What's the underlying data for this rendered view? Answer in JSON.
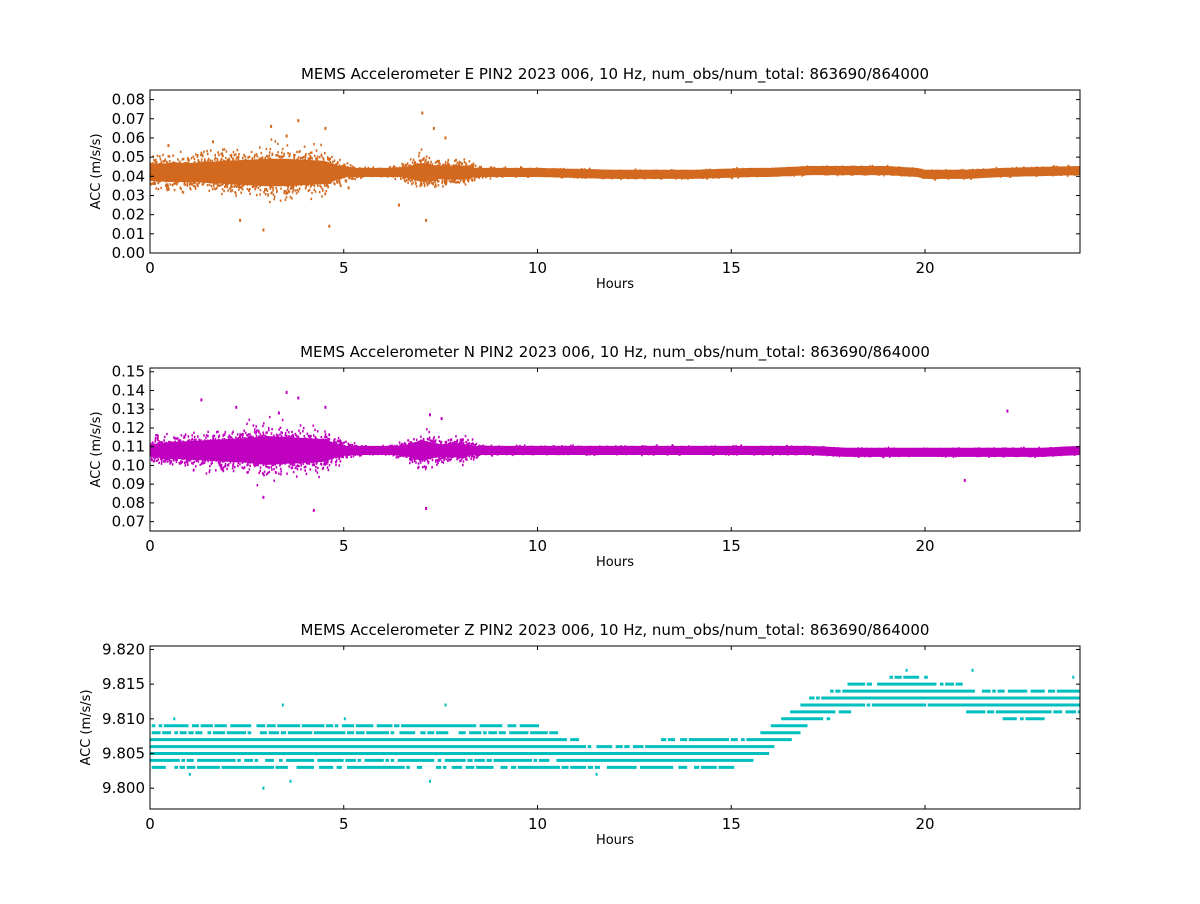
{
  "chart_data": [
    {
      "type": "scatter",
      "title": "MEMS Accelerometer E PIN2 2023 006, 10 Hz, num_obs/num_total: 863690/864000",
      "xlabel": "Hours",
      "ylabel": "ACC (m/s/s)",
      "xlim": [
        0,
        24
      ],
      "ylim": [
        0.0,
        0.085
      ],
      "xticks": [
        0,
        5,
        10,
        15,
        20
      ],
      "yticks": [
        0.0,
        0.01,
        0.02,
        0.03,
        0.04,
        0.05,
        0.06,
        0.07,
        0.08
      ],
      "ytick_decimals": 2,
      "color": "#d2691e",
      "grid": false,
      "series": [
        {
          "envelope_hours": [
            0,
            0.5,
            1,
            1.5,
            2,
            2.5,
            3,
            3.5,
            4,
            4.5,
            5,
            5.5,
            6,
            6.5,
            7,
            7.5,
            8,
            8.5,
            9,
            10,
            12,
            14,
            15.5,
            16,
            17,
            18,
            19,
            19.8,
            20,
            21,
            22,
            24
          ],
          "envelope_center": [
            0.042,
            0.042,
            0.042,
            0.042,
            0.042,
            0.042,
            0.042,
            0.042,
            0.042,
            0.042,
            0.042,
            0.042,
            0.042,
            0.042,
            0.042,
            0.042,
            0.042,
            0.042,
            0.042,
            0.042,
            0.041,
            0.041,
            0.042,
            0.042,
            0.043,
            0.043,
            0.043,
            0.042,
            0.041,
            0.041,
            0.042,
            0.043
          ],
          "envelope_halfwidth": [
            0.008,
            0.009,
            0.009,
            0.01,
            0.011,
            0.012,
            0.013,
            0.013,
            0.012,
            0.011,
            0.005,
            0.002,
            0.002,
            0.004,
            0.009,
            0.006,
            0.007,
            0.003,
            0.002,
            0.002,
            0.002,
            0.002,
            0.002,
            0.002,
            0.002,
            0.002,
            0.002,
            0.002,
            0.002,
            0.002,
            0.002,
            0.002
          ],
          "outliers": [
            [
              0.45,
              0.056
            ],
            [
              1.6,
              0.058
            ],
            [
              2.3,
              0.017
            ],
            [
              2.9,
              0.012
            ],
            [
              3.1,
              0.066
            ],
            [
              3.5,
              0.061
            ],
            [
              3.8,
              0.069
            ],
            [
              4.5,
              0.065
            ],
            [
              4.6,
              0.014
            ],
            [
              5.1,
              0.034
            ],
            [
              6.4,
              0.025
            ],
            [
              7.0,
              0.073
            ],
            [
              7.1,
              0.017
            ],
            [
              7.3,
              0.065
            ],
            [
              7.6,
              0.06
            ]
          ]
        }
      ]
    },
    {
      "type": "scatter",
      "title": "MEMS Accelerometer N PIN2 2023 006, 10 Hz, num_obs/num_total: 863690/864000",
      "xlabel": "Hours",
      "ylabel": "ACC (m/s/s)",
      "xlim": [
        0,
        24
      ],
      "ylim": [
        0.065,
        0.152
      ],
      "xticks": [
        0,
        5,
        10,
        15,
        20
      ],
      "yticks": [
        0.07,
        0.08,
        0.09,
        0.1,
        0.11,
        0.12,
        0.13,
        0.14,
        0.15
      ],
      "ytick_decimals": 2,
      "color": "#bf00bf",
      "grid": false,
      "series": [
        {
          "envelope_hours": [
            0,
            0.5,
            1,
            1.5,
            2,
            2.5,
            3,
            3.5,
            4,
            4.5,
            5,
            5.5,
            6,
            6.5,
            7,
            7.5,
            8,
            8.5,
            9,
            10,
            12,
            14,
            16,
            17,
            18,
            19,
            20,
            21,
            22,
            23,
            24
          ],
          "envelope_center": [
            0.108,
            0.108,
            0.108,
            0.108,
            0.108,
            0.108,
            0.108,
            0.108,
            0.108,
            0.108,
            0.108,
            0.108,
            0.108,
            0.108,
            0.108,
            0.108,
            0.108,
            0.108,
            0.108,
            0.108,
            0.108,
            0.108,
            0.108,
            0.108,
            0.107,
            0.107,
            0.107,
            0.107,
            0.107,
            0.107,
            0.108
          ],
          "envelope_halfwidth": [
            0.006,
            0.008,
            0.009,
            0.01,
            0.011,
            0.012,
            0.014,
            0.013,
            0.012,
            0.011,
            0.004,
            0.002,
            0.002,
            0.004,
            0.01,
            0.006,
            0.007,
            0.003,
            0.002,
            0.002,
            0.002,
            0.002,
            0.002,
            0.002,
            0.002,
            0.002,
            0.002,
            0.002,
            0.002,
            0.002,
            0.002
          ],
          "outliers": [
            [
              1.3,
              0.135
            ],
            [
              2.2,
              0.131
            ],
            [
              2.9,
              0.083
            ],
            [
              3.3,
              0.128
            ],
            [
              3.5,
              0.139
            ],
            [
              3.8,
              0.136
            ],
            [
              4.2,
              0.076
            ],
            [
              4.5,
              0.131
            ],
            [
              7.1,
              0.077
            ],
            [
              7.2,
              0.127
            ],
            [
              7.5,
              0.125
            ],
            [
              21.0,
              0.092
            ],
            [
              22.1,
              0.129
            ]
          ]
        }
      ]
    },
    {
      "type": "scatter",
      "title": "MEMS Accelerometer Z PIN2 2023 006, 10 Hz, num_obs/num_total: 863690/864000",
      "xlabel": "Hours",
      "ylabel": "ACC (m/s/s)",
      "xlim": [
        0,
        24
      ],
      "ylim": [
        9.797,
        9.8205
      ],
      "xticks": [
        0,
        5,
        10,
        15,
        20
      ],
      "yticks": [
        9.8,
        9.805,
        9.81,
        9.815,
        9.82
      ],
      "ytick_decimals": 3,
      "color": "#00bfbf",
      "grid": false,
      "series": [
        {
          "quantized_levels": [
            9.8,
            9.801,
            9.802,
            9.803,
            9.804,
            9.805,
            9.806,
            9.807,
            9.808,
            9.809,
            9.81,
            9.811,
            9.812,
            9.813,
            9.814,
            9.815,
            9.816,
            9.817
          ],
          "envelope_hours": [
            0,
            2,
            4,
            6,
            8,
            9,
            10,
            11,
            12,
            13,
            14,
            15,
            15.5,
            16,
            16.5,
            17,
            17.5,
            18,
            19,
            20,
            21,
            22,
            23,
            24
          ],
          "envelope_center": [
            9.806,
            9.806,
            9.806,
            9.806,
            9.806,
            9.806,
            9.806,
            9.805,
            9.804,
            9.805,
            9.805,
            9.805,
            9.806,
            9.807,
            9.809,
            9.811,
            9.812,
            9.813,
            9.814,
            9.814,
            9.813,
            9.812,
            9.812,
            9.813
          ],
          "envelope_halfwidth": [
            0.003,
            0.003,
            0.003,
            0.003,
            0.003,
            0.003,
            0.003,
            0.002,
            0.002,
            0.002,
            0.002,
            0.002,
            0.002,
            0.002,
            0.002,
            0.002,
            0.002,
            0.002,
            0.002,
            0.002,
            0.002,
            0.002,
            0.002,
            0.002
          ],
          "outliers": [
            [
              0.6,
              9.81
            ],
            [
              1.0,
              9.802
            ],
            [
              2.9,
              9.8
            ],
            [
              3.4,
              9.812
            ],
            [
              3.6,
              9.801
            ],
            [
              5.0,
              9.81
            ],
            [
              7.2,
              9.801
            ],
            [
              7.6,
              9.812
            ],
            [
              11.5,
              9.802
            ],
            [
              19.5,
              9.817
            ],
            [
              21.2,
              9.817
            ],
            [
              23.8,
              9.816
            ]
          ]
        }
      ]
    }
  ]
}
